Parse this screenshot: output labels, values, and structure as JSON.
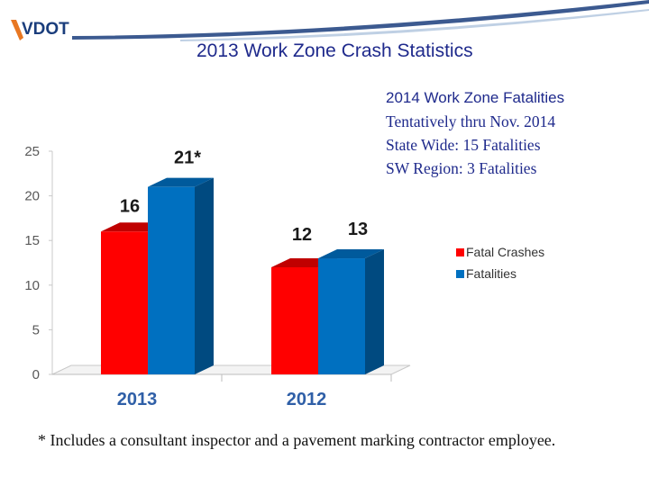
{
  "logo": {
    "text": "VDOT"
  },
  "title": "2013 Work Zone Crash Statistics",
  "note": {
    "lines": [
      "2014 Work Zone Fatalities",
      "Tentatively thru Nov. 2014",
      "State Wide: 15 Fatalities",
      "SW Region: 3 Fatalities"
    ]
  },
  "footnote": "* Includes a consultant inspector and a pavement marking contractor employee.",
  "colors": {
    "fatal_crashes": "#ff0000",
    "fatalities": "#0070c0",
    "title": "#1f2a8c",
    "brand_orange": "#e87722",
    "brand_blue": "#1a3d7c"
  },
  "chart_data": {
    "type": "bar",
    "categories": [
      "2013",
      "2012"
    ],
    "series": [
      {
        "name": "Fatal Crashes",
        "values": [
          16,
          12
        ],
        "labels": [
          "16",
          "12"
        ]
      },
      {
        "name": "Fatalities",
        "values": [
          21,
          13
        ],
        "labels": [
          "21*",
          "13"
        ]
      }
    ],
    "y_ticks": [
      "0",
      "5",
      "10",
      "15",
      "20",
      "25"
    ],
    "ylim": [
      0,
      25
    ],
    "grid": false,
    "three_d": true,
    "legend_position": "right"
  }
}
